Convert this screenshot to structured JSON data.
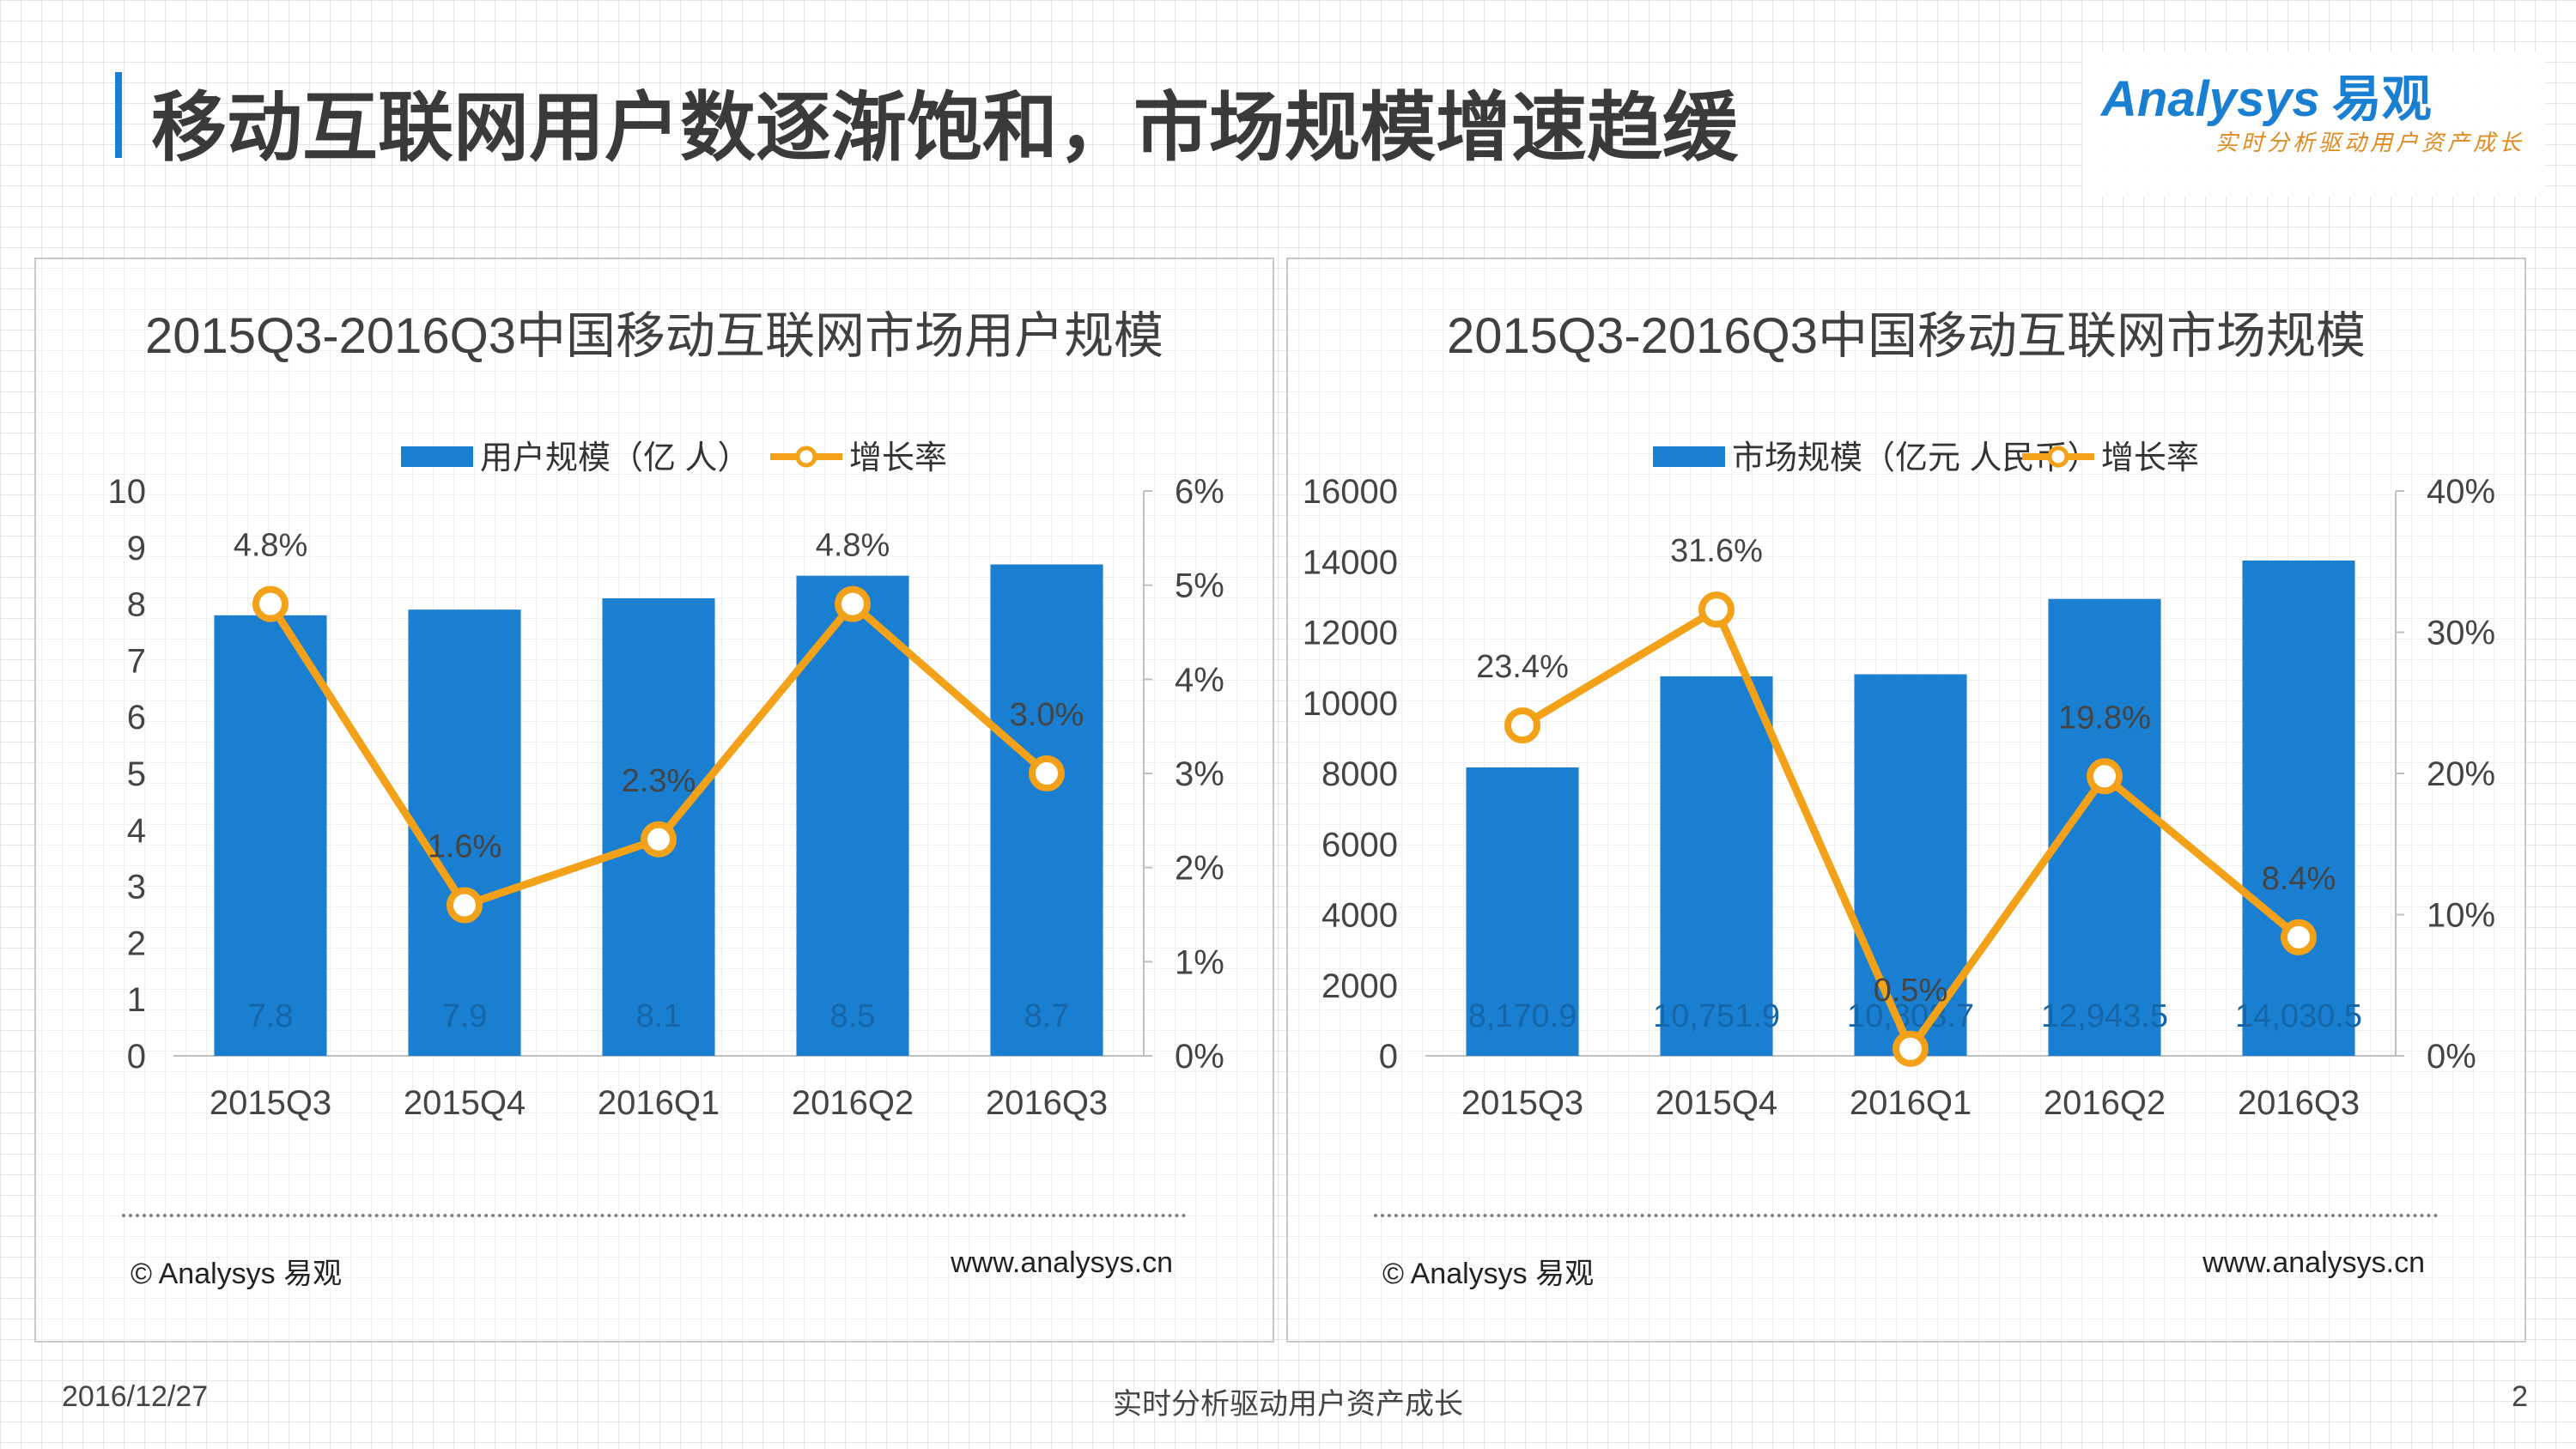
{
  "header": {
    "title": "移动互联网用户数逐渐饱和，市场规模增速趋缓"
  },
  "logo": {
    "wordmark": "Analysys",
    "cn": "易观",
    "slogan": "实时分析驱动用户资产成长"
  },
  "footer": {
    "date": "2016/12/27",
    "slogan": "实时分析驱动用户资产成长",
    "page": "2"
  },
  "panels": [
    {
      "title": "2015Q3-2016Q3中国移动互联网市场用户规模",
      "copyright": "© Analysys 易观",
      "url": "www.analysys.cn"
    },
    {
      "title": "2015Q3-2016Q3中国移动互联网市场规模",
      "copyright": "© Analysys 易观",
      "url": "www.analysys.cn"
    }
  ],
  "colors": {
    "bar": "#1a7fd0",
    "line": "#f2a118",
    "accent": "#1a7fd0"
  },
  "chart_data": [
    {
      "type": "bar",
      "title": "2015Q3-2016Q3中国移动互联网市场用户规模",
      "categories": [
        "2015Q3",
        "2015Q4",
        "2016Q1",
        "2016Q2",
        "2016Q3"
      ],
      "series": [
        {
          "name": "用户规模（亿 人）",
          "type": "bar",
          "axis": "left",
          "values": [
            7.8,
            7.9,
            8.1,
            8.5,
            8.7
          ],
          "labels": [
            "7.8",
            "7.9",
            "8.1",
            "8.5",
            "8.7"
          ]
        },
        {
          "name": "增长率",
          "type": "line",
          "axis": "right",
          "values": [
            4.8,
            1.6,
            2.3,
            4.8,
            3.0
          ],
          "labels": [
            "4.8%",
            "1.6%",
            "2.3%",
            "4.8%",
            "3.0%"
          ]
        }
      ],
      "y_left": {
        "min": 0,
        "max": 10,
        "ticks": [
          "0",
          "1",
          "2",
          "3",
          "4",
          "5",
          "6",
          "7",
          "8",
          "9",
          "10"
        ]
      },
      "y_right": {
        "min": 0,
        "max": 6,
        "ticks": [
          "0%",
          "1%",
          "2%",
          "3%",
          "4%",
          "5%",
          "6%"
        ]
      },
      "legend": "top-center",
      "grid": false
    },
    {
      "type": "bar",
      "title": "2015Q3-2016Q3中国移动互联网市场规模",
      "categories": [
        "2015Q3",
        "2015Q4",
        "2016Q1",
        "2016Q2",
        "2016Q3"
      ],
      "series": [
        {
          "name": "市场规模（亿元 人民币）",
          "type": "bar",
          "axis": "left",
          "values": [
            8170.9,
            10751.9,
            10808.7,
            12943.5,
            14030.5
          ],
          "labels": [
            "8,170.9",
            "10,751.9",
            "10,808.7",
            "12,943.5",
            "14,030.5"
          ]
        },
        {
          "name": "增长率",
          "type": "line",
          "axis": "right",
          "values": [
            23.4,
            31.6,
            0.5,
            19.8,
            8.4
          ],
          "labels": [
            "23.4%",
            "31.6%",
            "0.5%",
            "19.8%",
            "8.4%"
          ]
        }
      ],
      "y_left": {
        "min": 0,
        "max": 16000,
        "ticks": [
          "0",
          "2000",
          "4000",
          "6000",
          "8000",
          "10000",
          "12000",
          "14000",
          "16000"
        ]
      },
      "y_right": {
        "min": 0,
        "max": 40,
        "ticks": [
          "0%",
          "10%",
          "20%",
          "30%",
          "40%"
        ]
      },
      "legend": "top-center",
      "grid": false
    }
  ]
}
